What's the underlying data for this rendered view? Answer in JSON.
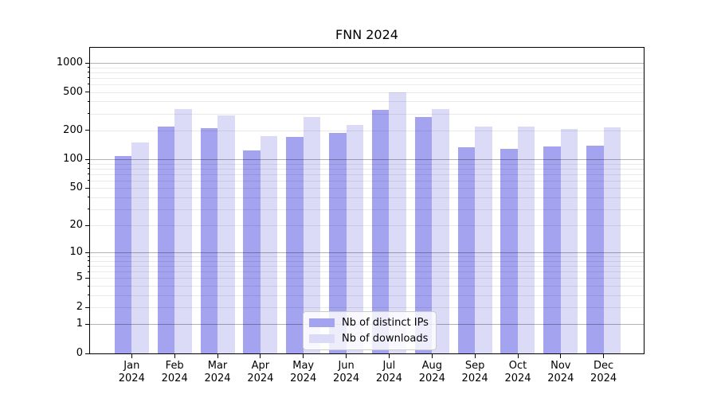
{
  "title": "FNN 2024",
  "legend": {
    "position": "lower center",
    "items": [
      {
        "label": "Nb of distinct IPs",
        "color": "#a3a3f0"
      },
      {
        "label": "Nb of downloads",
        "color": "#dbdbf8"
      }
    ]
  },
  "y_axis": {
    "scale": "log(1+v)",
    "tick_values": [
      0,
      1,
      2,
      5,
      10,
      20,
      50,
      100,
      200,
      500,
      1000
    ],
    "tick_labels": [
      "0",
      "1",
      "2",
      "5",
      "10",
      "20",
      "50",
      "100",
      "200",
      "500",
      "1000"
    ]
  },
  "x_axis": {
    "months": [
      "Jan",
      "Feb",
      "Mar",
      "Apr",
      "May",
      "Jun",
      "Jul",
      "Aug",
      "Sep",
      "Oct",
      "Nov",
      "Dec"
    ],
    "year": "2024"
  },
  "chart_data": {
    "type": "bar",
    "title": "FNN 2024",
    "categories": [
      "Jan 2024",
      "Feb 2024",
      "Mar 2024",
      "Apr 2024",
      "May 2024",
      "Jun 2024",
      "Jul 2024",
      "Aug 2024",
      "Sep 2024",
      "Oct 2024",
      "Nov 2024",
      "Dec 2024"
    ],
    "series": [
      {
        "name": "Nb of distinct IPs",
        "color": "#a3a3f0",
        "values": [
          109,
          221,
          213,
          125,
          170,
          190,
          328,
          277,
          133,
          128,
          136,
          139
        ]
      },
      {
        "name": "Nb of downloads",
        "color": "#dbdbf8",
        "values": [
          151,
          335,
          284,
          176,
          274,
          230,
          498,
          331,
          218,
          220,
          208,
          215
        ]
      }
    ],
    "xlabel": "",
    "ylabel": "",
    "yscale": "log1p",
    "ylim": [
      0,
      1434
    ],
    "grid": "both",
    "legend_position": "lower center"
  },
  "colors": {
    "spine": "#000000",
    "major_grid": "rgba(0,0,0,0.30)",
    "minor_grid": "rgba(0,0,0,0.085)"
  }
}
